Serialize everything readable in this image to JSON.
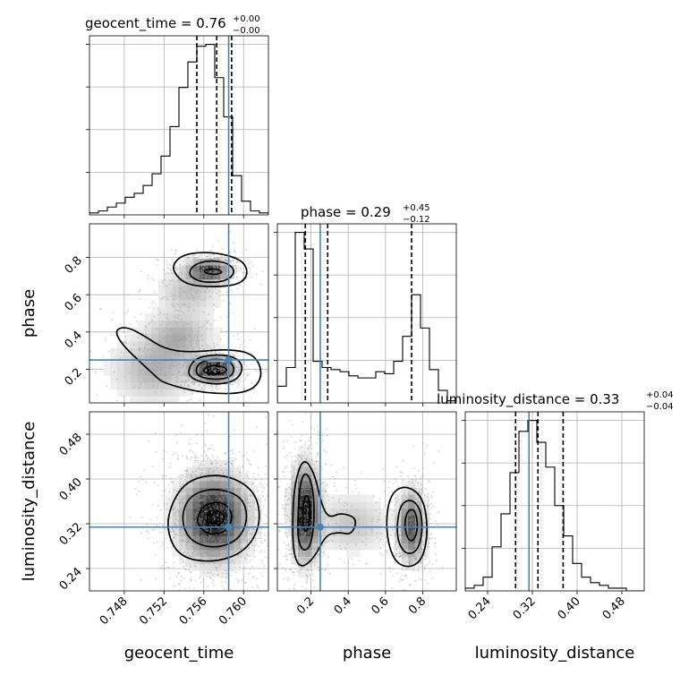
{
  "chart_data": {
    "type": "corner",
    "parameters": [
      {
        "name": "geocent_time",
        "xlabel": "geocent_time",
        "ylabel": "",
        "title_value": "0.76",
        "title_plus": "+0.00",
        "title_minus": "−0.00",
        "range": [
          0.7445,
          0.7625
        ],
        "ticks": [
          0.748,
          0.752,
          0.756,
          0.76
        ],
        "tick_labels": [
          "0.748",
          "0.752",
          "0.756",
          "0.760"
        ],
        "truth": 0.7585,
        "quantiles": [
          0.7553,
          0.7573,
          0.7588
        ],
        "hist_edges_start": 0.7445,
        "hist_bin_width": 0.0009,
        "hist_counts": [
          1,
          2,
          4,
          6,
          9,
          11,
          15,
          21,
          30,
          45,
          65,
          78,
          86,
          87,
          70,
          50,
          20,
          7,
          2,
          1
        ]
      },
      {
        "name": "phase",
        "xlabel": "phase",
        "ylabel": "phase",
        "title_value": "0.29",
        "title_plus": "+0.45",
        "title_minus": "−0.12",
        "range": [
          0.02,
          0.98
        ],
        "ticks": [
          0.2,
          0.4,
          0.6,
          0.8
        ],
        "tick_labels": [
          "0.2",
          "0.4",
          "0.6",
          "0.8"
        ],
        "truth": 0.25,
        "quantiles": [
          0.17,
          0.29,
          0.74
        ],
        "hist_edges_start": 0.02,
        "hist_bin_width": 0.048,
        "hist_counts": [
          8,
          17,
          82,
          74,
          20,
          17,
          16,
          15,
          13,
          12,
          12,
          15,
          14,
          20,
          32,
          52,
          36,
          16,
          6,
          1
        ]
      },
      {
        "name": "luminosity_distance",
        "xlabel": "luminosity_distance",
        "ylabel": "luminosity_distance",
        "title_value": "0.33",
        "title_plus": "+0.04",
        "title_minus": "−0.04",
        "range": [
          0.2,
          0.52
        ],
        "ticks": [
          0.24,
          0.32,
          0.4,
          0.48
        ],
        "tick_labels": [
          "0.24",
          "0.32",
          "0.40",
          "0.48"
        ],
        "truth": 0.314,
        "quantiles": [
          0.29,
          0.33,
          0.375
        ],
        "hist_edges_start": 0.2,
        "hist_bin_width": 0.016,
        "hist_counts": [
          1,
          2,
          5,
          16,
          28,
          43,
          58,
          62,
          54,
          45,
          31,
          20,
          10,
          5,
          3,
          2,
          1,
          1,
          0,
          0
        ]
      }
    ],
    "truth_color": "#4682b4",
    "grid": true
  }
}
